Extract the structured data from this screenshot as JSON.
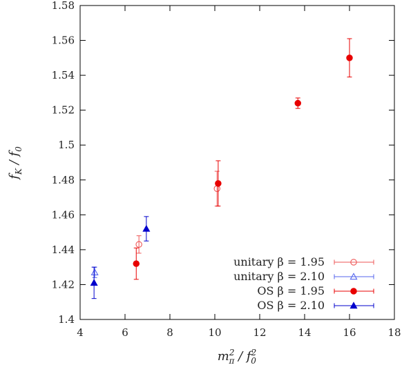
{
  "chart_data": {
    "type": "scatter",
    "xlim": [
      4,
      18
    ],
    "ylim": [
      1.4,
      1.58
    ],
    "x_ticks": [
      "4",
      "6",
      "8",
      "10",
      "12",
      "14",
      "16",
      "18"
    ],
    "y_ticks": [
      "1.4",
      "1.42",
      "1.44",
      "1.46",
      "1.48",
      "1.5",
      "1.52",
      "1.54",
      "1.56",
      "1.58"
    ],
    "xlabel": "m²π / f²0",
    "ylabel": "fK / f0",
    "grid": false,
    "legend_position": "bottom-right",
    "series": [
      {
        "name": "unitary β = 1.95",
        "color": "#ee5555",
        "marker": "circle-open",
        "points": [
          {
            "x": 6.62,
            "y": 1.443,
            "err": 0.005
          },
          {
            "x": 10.1,
            "y": 1.475,
            "err": 0.01
          }
        ]
      },
      {
        "name": "unitary β = 2.10",
        "color": "#5566ee",
        "marker": "triangle-open",
        "points": [
          {
            "x": 4.65,
            "y": 1.427,
            "err": 0.003
          }
        ]
      },
      {
        "name": "OS β = 1.95",
        "color": "#e80000",
        "marker": "circle-filled",
        "points": [
          {
            "x": 6.5,
            "y": 1.432,
            "err": 0.009
          },
          {
            "x": 10.15,
            "y": 1.478,
            "err": 0.013
          },
          {
            "x": 13.7,
            "y": 1.524,
            "err": 0.003
          },
          {
            "x": 16.0,
            "y": 1.55,
            "err": 0.011
          }
        ]
      },
      {
        "name": "OS β = 2.10",
        "color": "#0000cc",
        "marker": "triangle-filled",
        "points": [
          {
            "x": 4.62,
            "y": 1.421,
            "err": 0.009
          },
          {
            "x": 6.95,
            "y": 1.452,
            "err": 0.007
          }
        ]
      }
    ]
  }
}
